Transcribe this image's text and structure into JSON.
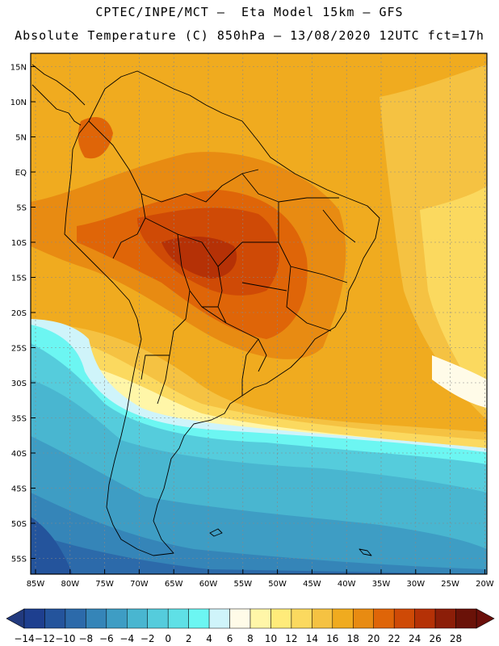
{
  "title_line1": "CPTEC/INPE/MCT –  Eta Model 15km – GFS",
  "title_line2": "Absolute Temperature (C) 850hPa – 13/08/2020 12UTC fct=17h",
  "lat_labels": [
    "15N",
    "10N",
    "5N",
    "EQ",
    "5S",
    "10S",
    "15S",
    "20S",
    "25S",
    "30S",
    "35S",
    "40S",
    "45S",
    "50S",
    "55S"
  ],
  "lon_labels": [
    "85W",
    "80W",
    "75W",
    "70W",
    "65W",
    "60W",
    "55W",
    "50W",
    "45W",
    "40W",
    "35W",
    "30W",
    "25W",
    "20W"
  ],
  "colorbar": {
    "labels": [
      "-14",
      "-12",
      "-10",
      "-8",
      "-6",
      "-4",
      "-2",
      "0",
      "2",
      "4",
      "6",
      "8",
      "10",
      "12",
      "14",
      "16",
      "18",
      "20",
      "22",
      "24",
      "26",
      "28"
    ],
    "colors": [
      "#1e3f8f",
      "#24549c",
      "#2c6aaa",
      "#3585b8",
      "#3e9dc4",
      "#49b6d0",
      "#55ccdc",
      "#5fe0e6",
      "#6cf6f2",
      "#cff4fa",
      "#fffbe8",
      "#fff6a8",
      "#ffeb7a",
      "#fbd95f",
      "#f5c242",
      "#f0ab1f",
      "#e88b12",
      "#df6508",
      "#cf4a06",
      "#b53106",
      "#8c1e08",
      "#6a1208"
    ],
    "under_color": "#223a7e",
    "over_color": "#6a0f0a"
  }
}
